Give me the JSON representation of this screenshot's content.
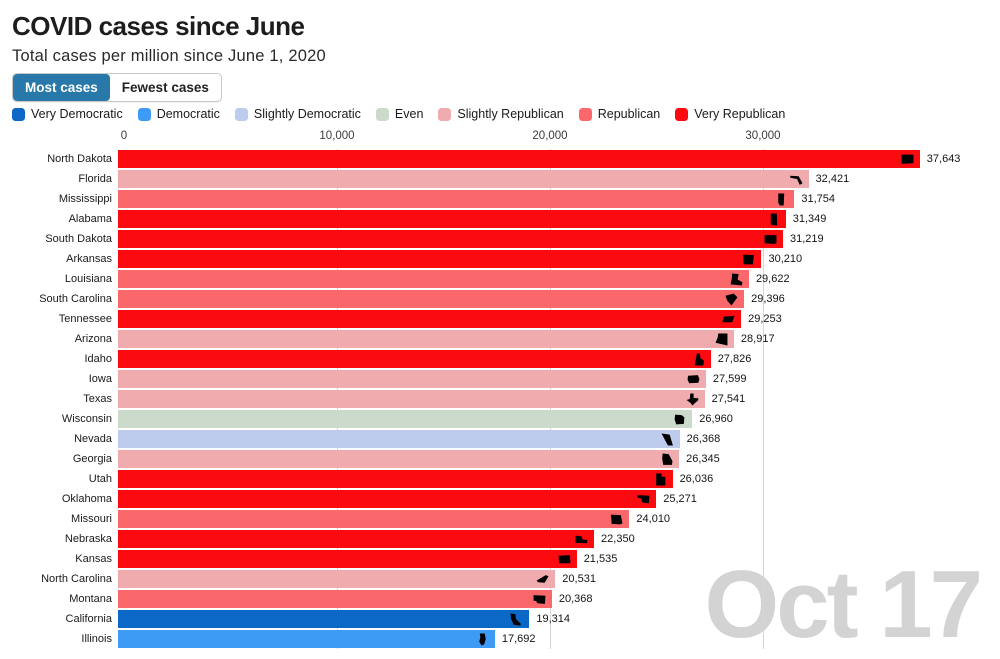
{
  "header": {
    "title": "COVID cases since June",
    "subtitle": "Total cases per million since June 1, 2020"
  },
  "toggle": {
    "most_label": "Most cases",
    "fewest_label": "Fewest cases",
    "selected": "Most cases",
    "selected_color": "#2879A9"
  },
  "legend": {
    "items": [
      {
        "key": "very_dem",
        "label": "Very Democratic",
        "color": "#0B68C7"
      },
      {
        "key": "dem",
        "label": "Democratic",
        "color": "#3D9BF5"
      },
      {
        "key": "slight_dem",
        "label": "Slightly Democratic",
        "color": "#BDCBEC"
      },
      {
        "key": "even",
        "label": "Even",
        "color": "#CCDACB"
      },
      {
        "key": "slight_rep",
        "label": "Slightly Republican",
        "color": "#EFABAD"
      },
      {
        "key": "rep",
        "label": "Republican",
        "color": "#FB686C"
      },
      {
        "key": "very_rep",
        "label": "Very Republican",
        "color": "#FB0A10"
      }
    ]
  },
  "watermark": "Oct 17",
  "chart_data": {
    "type": "bar",
    "orientation": "horizontal",
    "title": "COVID cases since June",
    "subtitle": "Total cases per million since June 1, 2020",
    "xlabel": "",
    "ylabel": "",
    "xlim": [
      0,
      41000
    ],
    "grid": "vertical",
    "legend_position": "top",
    "x_ticks": [
      {
        "value": 0,
        "label": "0"
      },
      {
        "value": 10000,
        "label": "10,000"
      },
      {
        "value": 20000,
        "label": "20,000"
      },
      {
        "value": 30000,
        "label": "30,000"
      }
    ],
    "categories": [
      "North Dakota",
      "Florida",
      "Mississippi",
      "Alabama",
      "South Dakota",
      "Arkansas",
      "Louisiana",
      "South Carolina",
      "Tennessee",
      "Arizona",
      "Idaho",
      "Iowa",
      "Texas",
      "Wisconsin",
      "Nevada",
      "Georgia",
      "Utah",
      "Oklahoma",
      "Missouri",
      "Nebraska",
      "Kansas",
      "North Carolina",
      "Montana",
      "California",
      "Illinois"
    ],
    "values": [
      37643,
      32421,
      31754,
      31349,
      31219,
      30210,
      29622,
      29396,
      29253,
      28917,
      27826,
      27599,
      27541,
      26960,
      26368,
      26345,
      26036,
      25271,
      24010,
      22350,
      21535,
      20531,
      20368,
      19314,
      17692
    ],
    "value_labels": [
      "37,643",
      "32,421",
      "31,754",
      "31,349",
      "31,219",
      "30,210",
      "29,622",
      "29,396",
      "29,253",
      "28,917",
      "27,826",
      "27,599",
      "27,541",
      "26,960",
      "26,368",
      "26,345",
      "26,036",
      "25,271",
      "24,010",
      "22,350",
      "21,535",
      "20,531",
      "20,368",
      "19,314",
      "17,692"
    ],
    "lean": [
      "very_rep",
      "slight_rep",
      "rep",
      "very_rep",
      "very_rep",
      "very_rep",
      "rep",
      "rep",
      "very_rep",
      "slight_rep",
      "very_rep",
      "slight_rep",
      "slight_rep",
      "even",
      "slight_dem",
      "slight_rep",
      "very_rep",
      "very_rep",
      "rep",
      "very_rep",
      "very_rep",
      "slight_rep",
      "rep",
      "very_dem",
      "dem"
    ]
  }
}
